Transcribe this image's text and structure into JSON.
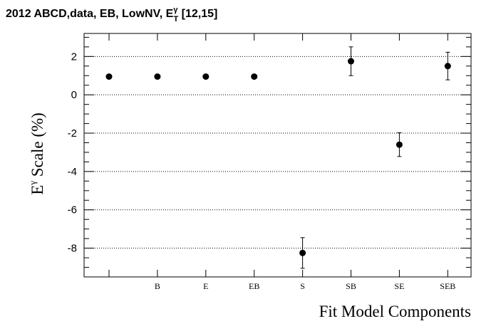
{
  "chart_data": {
    "type": "scatter",
    "title": {
      "prefix": "2012 ABCD,data, EB, LowNV, E",
      "sup": "γ",
      "sub": "T",
      "suffix": " [12,15]"
    },
    "xlabel": "Fit Model Components",
    "ylabel": {
      "main": "E",
      "sup": "γ",
      "rest": " Scale (%)"
    },
    "categories": [
      "",
      "B",
      "E",
      "EB",
      "S",
      "SB",
      "SE",
      "SEB"
    ],
    "values": [
      0.95,
      0.95,
      0.95,
      0.95,
      -8.25,
      1.75,
      -2.6,
      1.5
    ],
    "errors": [
      0,
      0,
      0,
      0,
      0.8,
      0.75,
      0.62,
      0.72
    ],
    "ylim": [
      -9.5,
      3.2
    ],
    "yticks": [
      {
        "value": 2,
        "label": "2"
      },
      {
        "value": 0,
        "label": "0"
      },
      {
        "value": -2,
        "label": "-2"
      },
      {
        "value": -4,
        "label": "-4"
      },
      {
        "value": -6,
        "label": "-6"
      },
      {
        "value": -8,
        "label": "-8"
      }
    ],
    "grid": "horizontal-dotted",
    "marker_color": "#000000"
  }
}
